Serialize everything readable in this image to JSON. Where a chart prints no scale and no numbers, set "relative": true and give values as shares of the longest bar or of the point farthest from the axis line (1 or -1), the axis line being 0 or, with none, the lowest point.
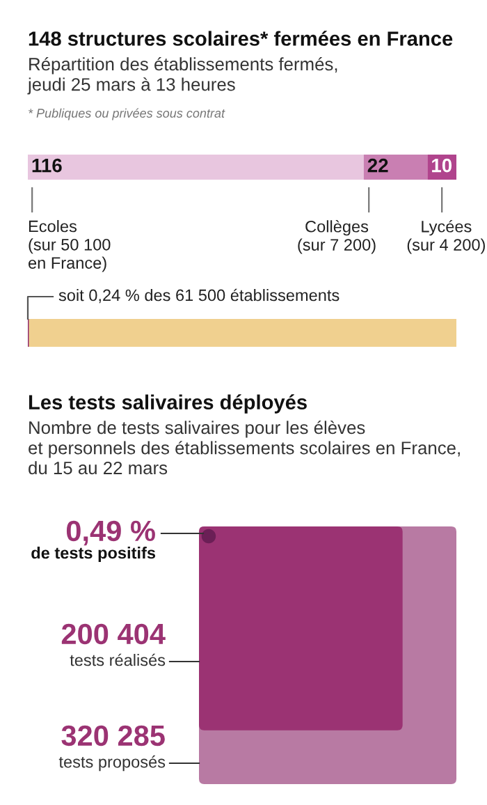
{
  "chart_data": [
    {
      "type": "bar",
      "orientation": "horizontal",
      "stacked": true,
      "data_labels": true,
      "title": "148 structures scolaires* fermées en France",
      "subtitle": "Répartition des établissements fermés,\njeudi 25 mars à 13 heures",
      "annotations": [
        "* Publiques ou privées sous contrat"
      ],
      "categories": [
        null
      ],
      "series": [
        {
          "name": "Ecoles\n(sur 50 100\nen France)",
          "color": "#e8c6df",
          "values": [
            116
          ]
        },
        {
          "name": "Collèges\n(sur 7 200)",
          "color": "#c97fb2",
          "values": [
            22
          ]
        },
        {
          "name": "Lycées\n(sur 4 200)",
          "color": "#b0448d",
          "values": [
            10
          ]
        }
      ]
    },
    {
      "type": "bar",
      "orientation": "horizontal",
      "relative": true,
      "annotations": [
        "soit 0,24 % des 61 500 établissements"
      ],
      "categories": [
        null
      ],
      "series": [
        {
          "color": "#f0d08f",
          "values": [
            1
          ]
        },
        {
          "color": "#8e2a6e",
          "values": [
            0.0024
          ]
        }
      ]
    },
    {
      "type": "other",
      "title": "Les tests salivaires déployés",
      "subtitle": "Nombre de tests salivaires pour les élèves\net personnels des établissements scolaires en France,\ndu 15 au 22 mars",
      "categories": [
        "tests proposés",
        "tests réalisés",
        "de tests positifs"
      ],
      "values": [
        320285,
        200404,
        0.49
      ],
      "value_labels": [
        "320 285",
        "200 404",
        "0,49 %"
      ],
      "colors": [
        "#b87aa3",
        "#9b3373",
        "#6b1f56"
      ]
    }
  ]
}
